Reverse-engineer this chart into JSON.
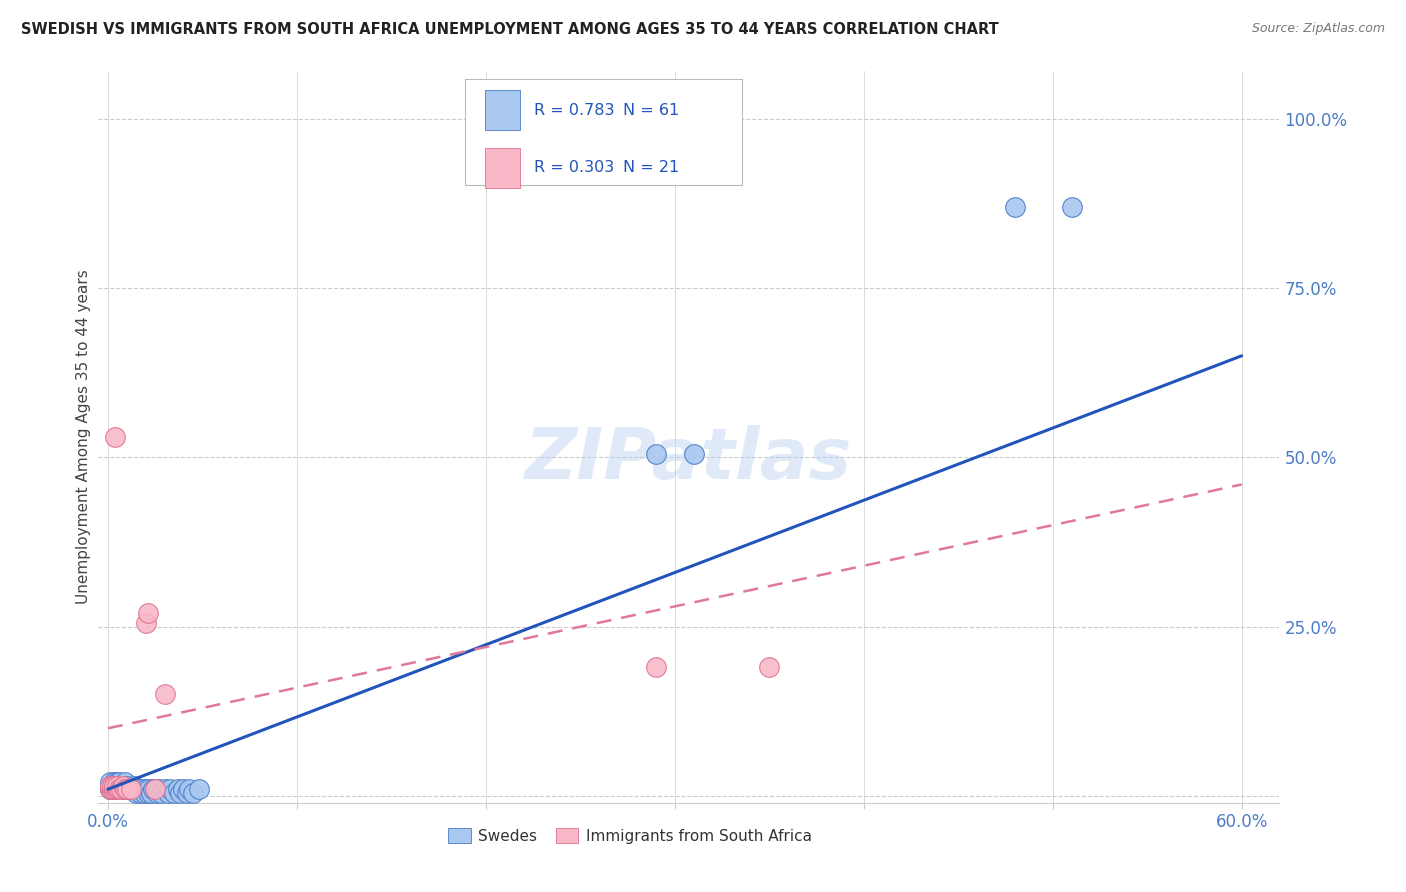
{
  "title": "SWEDISH VS IMMIGRANTS FROM SOUTH AFRICA UNEMPLOYMENT AMONG AGES 35 TO 44 YEARS CORRELATION CHART",
  "source": "Source: ZipAtlas.com",
  "ylabel": "Unemployment Among Ages 35 to 44 years",
  "xlim": [
    -0.005,
    0.62
  ],
  "ylim": [
    -0.01,
    1.07
  ],
  "xticks": [
    0.0,
    0.1,
    0.2,
    0.3,
    0.4,
    0.5,
    0.6
  ],
  "xticklabels": [
    "0.0%",
    "",
    "",
    "",
    "",
    "",
    "60.0%"
  ],
  "yticks": [
    0.0,
    0.25,
    0.5,
    0.75,
    1.0
  ],
  "yticklabels": [
    "",
    "25.0%",
    "50.0%",
    "75.0%",
    "100.0%"
  ],
  "swedes_color": "#a8c8f0",
  "swedes_edge_color": "#4a7cc7",
  "immigrants_color": "#f8b8c8",
  "immigrants_edge_color": "#e07090",
  "swedes_R": 0.783,
  "swedes_N": 61,
  "immigrants_R": 0.303,
  "immigrants_N": 21,
  "blue_line_color": "#2255bb",
  "pink_line_color": "#e07898",
  "watermark_color": "#b8d0f0",
  "tick_color": "#4a7cc7",
  "grid_color": "#cccccc",
  "swedes_x": [
    0.001,
    0.001,
    0.001,
    0.002,
    0.002,
    0.002,
    0.003,
    0.003,
    0.003,
    0.003,
    0.004,
    0.004,
    0.004,
    0.005,
    0.005,
    0.005,
    0.005,
    0.006,
    0.006,
    0.006,
    0.007,
    0.007,
    0.008,
    0.008,
    0.009,
    0.009,
    0.01,
    0.01,
    0.011,
    0.012,
    0.013,
    0.014,
    0.015,
    0.016,
    0.017,
    0.018,
    0.019,
    0.02,
    0.021,
    0.022,
    0.023,
    0.024,
    0.025,
    0.026,
    0.027,
    0.028,
    0.03,
    0.032,
    0.033,
    0.035,
    0.037,
    0.038,
    0.04,
    0.042,
    0.043,
    0.045,
    0.048,
    0.29,
    0.31,
    0.48,
    0.51
  ],
  "swedes_y": [
    0.01,
    0.01,
    0.02,
    0.01,
    0.01,
    0.015,
    0.01,
    0.01,
    0.015,
    0.02,
    0.01,
    0.01,
    0.015,
    0.01,
    0.01,
    0.015,
    0.02,
    0.01,
    0.015,
    0.02,
    0.01,
    0.015,
    0.01,
    0.015,
    0.01,
    0.02,
    0.01,
    0.015,
    0.01,
    0.01,
    0.01,
    0.015,
    0.005,
    0.01,
    0.005,
    0.01,
    0.005,
    0.01,
    0.005,
    0.01,
    0.005,
    0.01,
    0.01,
    0.005,
    0.01,
    0.005,
    0.01,
    0.005,
    0.01,
    0.005,
    0.01,
    0.005,
    0.01,
    0.005,
    0.01,
    0.005,
    0.01,
    0.505,
    0.505,
    0.87,
    0.87
  ],
  "immigrants_x": [
    0.001,
    0.001,
    0.002,
    0.002,
    0.003,
    0.003,
    0.004,
    0.005,
    0.005,
    0.006,
    0.007,
    0.008,
    0.009,
    0.01,
    0.012,
    0.02,
    0.021,
    0.025,
    0.03,
    0.29,
    0.35
  ],
  "immigrants_y": [
    0.01,
    0.015,
    0.01,
    0.015,
    0.01,
    0.015,
    0.53,
    0.01,
    0.015,
    0.01,
    0.01,
    0.015,
    0.01,
    0.01,
    0.01,
    0.255,
    0.27,
    0.01,
    0.15,
    0.19,
    0.19
  ],
  "blue_line_x0": 0.0,
  "blue_line_y0": 0.01,
  "blue_line_x1": 0.6,
  "blue_line_y1": 0.65,
  "pink_line_x0": 0.0,
  "pink_line_y0": 0.1,
  "pink_line_x1": 0.6,
  "pink_line_y1": 0.46
}
